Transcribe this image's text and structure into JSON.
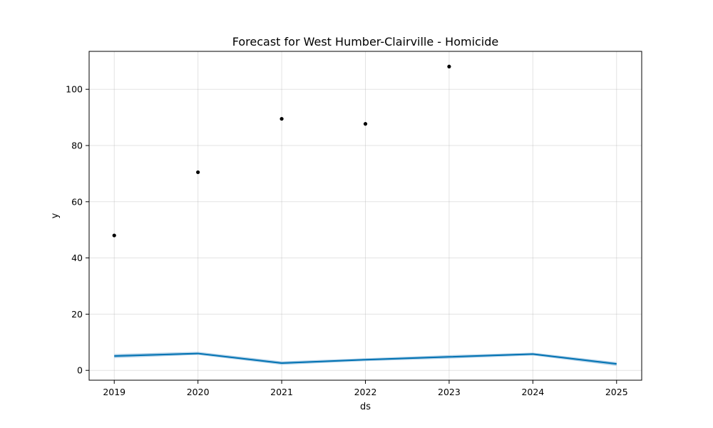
{
  "chart_data": {
    "type": "line",
    "title": "Forecast for West Humber-Clairville - Homicide",
    "xlabel": "ds",
    "ylabel": "y",
    "x_ticks": [
      "2019",
      "2020",
      "2021",
      "2022",
      "2023",
      "2024",
      "2025"
    ],
    "y_ticks": [
      0,
      20,
      40,
      60,
      80,
      100
    ],
    "xlim": [
      2018.7,
      2025.3
    ],
    "ylim": [
      -3.5,
      113.5
    ],
    "grid": true,
    "actual": {
      "x": [
        2019,
        2020,
        2021,
        2022,
        2023
      ],
      "y": [
        48,
        70.5,
        89.5,
        87.7,
        108.1
      ],
      "color": "#000000"
    },
    "forecast": {
      "x": [
        2019,
        2020,
        2021,
        2022,
        2023,
        2024,
        2025
      ],
      "yhat": [
        5.1,
        6.0,
        2.6,
        3.8,
        4.8,
        5.8,
        2.3
      ],
      "yhat_lower": [
        4.4,
        5.5,
        2.0,
        3.3,
        4.2,
        5.3,
        1.6
      ],
      "yhat_upper": [
        5.8,
        6.6,
        3.2,
        4.3,
        5.4,
        6.3,
        2.9
      ],
      "line_color": "#0072B2",
      "band_color": "#9fc6e3"
    }
  }
}
